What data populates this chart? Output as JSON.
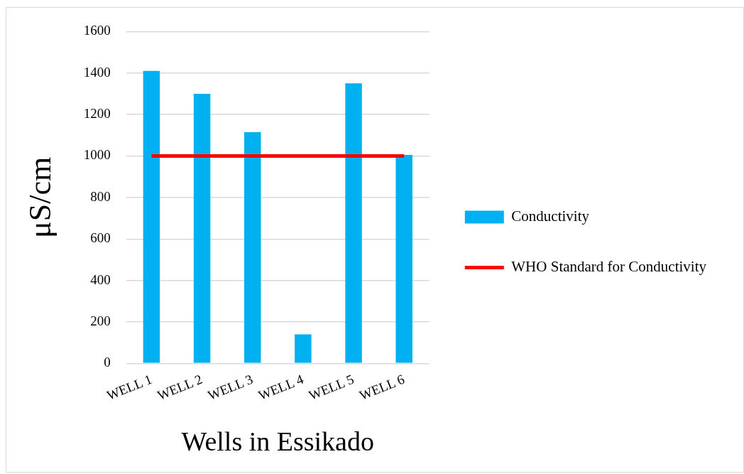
{
  "chart_data": {
    "type": "bar",
    "xlabel": "Wells in Essikado",
    "ylabel": "μS/cm",
    "categories": [
      "WELL 1",
      "WELL 2",
      "WELL 3",
      "WELL 4",
      "WELL 5",
      "WELL 6"
    ],
    "series": [
      {
        "name": "Conductivity",
        "color": "#00b0f0",
        "values": [
          1410,
          1300,
          1115,
          140,
          1350,
          1005
        ]
      },
      {
        "name": "WHO Standard for Conductivity",
        "type": "line",
        "color": "#ff0000",
        "values": [
          1000,
          1000,
          1000,
          1000,
          1000,
          1000
        ]
      }
    ],
    "ylim": [
      0,
      1600
    ],
    "yticks": [
      0,
      200,
      400,
      600,
      800,
      1000,
      1200,
      1400,
      1600
    ],
    "grid": "y",
    "legend": "right",
    "marker": "none"
  }
}
